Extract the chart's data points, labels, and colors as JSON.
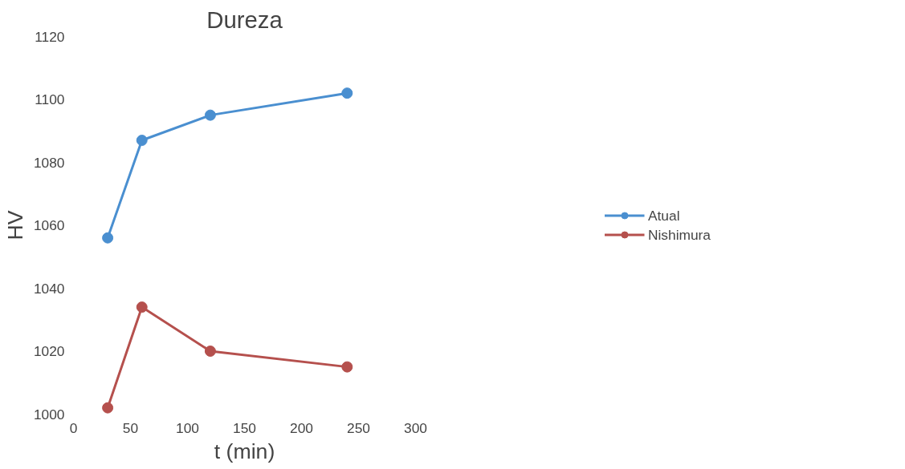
{
  "chart_data": {
    "type": "line",
    "title": "Dureza",
    "xlabel": "t (min)",
    "ylabel": "HV",
    "x": [
      30,
      60,
      120,
      240
    ],
    "series": [
      {
        "name": "Atual",
        "color": "#4a8fd0",
        "values": [
          1056,
          1087,
          1095,
          1102
        ]
      },
      {
        "name": "Nishimura",
        "color": "#b5504d",
        "values": [
          1002,
          1034,
          1020,
          1015
        ]
      }
    ],
    "xlim": [
      0,
      300
    ],
    "xticks": [
      0,
      50,
      100,
      150,
      200,
      250,
      300
    ],
    "ylim": [
      1000,
      1120
    ],
    "yticks": [
      1000,
      1020,
      1040,
      1060,
      1080,
      1100,
      1120
    ],
    "grid": false,
    "legend": "right",
    "marker": "circle",
    "line_style": "solid"
  }
}
